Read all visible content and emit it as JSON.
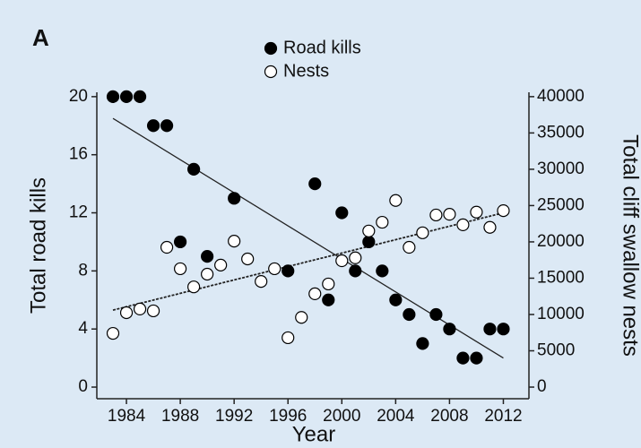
{
  "chart_data": {
    "type": "scatter",
    "panel_label": "A",
    "x_label": "Year",
    "y_label": "Total road kills",
    "y2_label": "Total cliff swallow nests",
    "x": [
      1983,
      1984,
      1985,
      1986,
      1987,
      1988,
      1989,
      1990,
      1991,
      1992,
      1993,
      1994,
      1995,
      1996,
      1997,
      1998,
      1999,
      2000,
      2001,
      2002,
      2003,
      2004,
      2005,
      2006,
      2007,
      2008,
      2009,
      2010,
      2011,
      2012
    ],
    "series": [
      {
        "name": "Road kills",
        "color": "#000000",
        "axis": "y",
        "trend_style": "solid",
        "values": [
          20,
          20,
          20,
          18,
          18,
          10,
          15,
          9,
          null,
          13,
          null,
          null,
          null,
          8,
          null,
          14,
          6,
          12,
          8,
          10,
          8,
          6,
          5,
          3,
          5,
          4,
          2,
          2,
          4,
          4
        ],
        "trend": [
          18.5,
          2
        ]
      },
      {
        "name": "Nests",
        "color": "#ffffff",
        "axis": "y2",
        "trend_style": "dashed",
        "values": [
          7400,
          10250,
          10750,
          10500,
          19250,
          16300,
          13800,
          15550,
          16800,
          20100,
          17650,
          14550,
          16300,
          6800,
          9600,
          12850,
          14200,
          17400,
          17800,
          21500,
          22700,
          25700,
          19250,
          21250,
          23700,
          23800,
          22350,
          24100,
          22000,
          24300
        ],
        "trend": [
          10600,
          24000
        ]
      }
    ],
    "trend_x": [
      1983,
      2012
    ],
    "xlim": [
      1981.8,
      2013.9
    ],
    "ylim": [
      -0.8,
      20.3
    ],
    "y2lim": [
      -1600,
      40600
    ],
    "xticks": [
      1984,
      1988,
      1992,
      1996,
      2000,
      2004,
      2008,
      2012
    ],
    "yticks": [
      0,
      4,
      8,
      12,
      16,
      20
    ],
    "y2ticks": [
      0,
      5000,
      10000,
      15000,
      20000,
      25000,
      30000,
      35000,
      40000
    ],
    "legend": "top"
  }
}
